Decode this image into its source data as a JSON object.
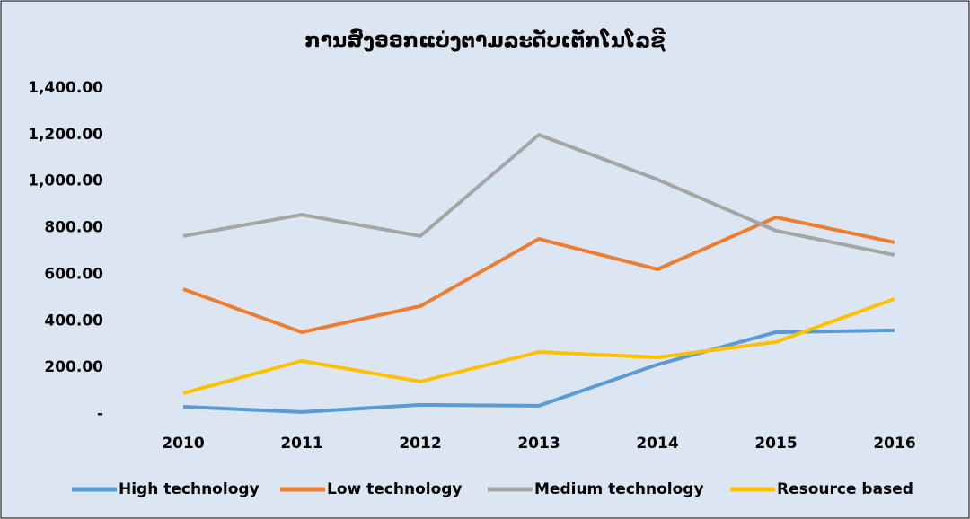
{
  "chart_data": {
    "type": "line",
    "title": "ການສົ່ງອອກແບ່ງຕາມລະດັບເຕັກໂນໂລຊີ",
    "categories": [
      "2010",
      "2011",
      "2012",
      "2013",
      "2014",
      "2015",
      "2016"
    ],
    "series": [
      {
        "name": "High technology",
        "color": "#5b9bd5",
        "values": [
          31,
          8,
          39,
          35,
          212,
          351,
          359
        ]
      },
      {
        "name": "Low technology",
        "color": "#ed7d31",
        "values": [
          536,
          351,
          463,
          752,
          621,
          845,
          737
        ]
      },
      {
        "name": "Medium technology",
        "color": "#a5a5a5",
        "values": [
          764,
          856,
          764,
          1199,
          1007,
          787,
          683
        ]
      },
      {
        "name": "Resource based",
        "color": "#ffc000",
        "values": [
          89,
          228,
          139,
          266,
          243,
          309,
          494
        ]
      }
    ],
    "ylim": [
      0,
      1400
    ],
    "yticks": [
      {
        "value": 0,
        "label": "-"
      },
      {
        "value": 200,
        "label": "200.00"
      },
      {
        "value": 400,
        "label": "400.00"
      },
      {
        "value": 600,
        "label": "600.00"
      },
      {
        "value": 800,
        "label": "800.00"
      },
      {
        "value": 1000,
        "label": "1,000.00"
      },
      {
        "value": 1200,
        "label": "1,200.00"
      },
      {
        "value": 1400,
        "label": "1,400.00"
      }
    ],
    "grid": false,
    "legend": "bottom"
  }
}
